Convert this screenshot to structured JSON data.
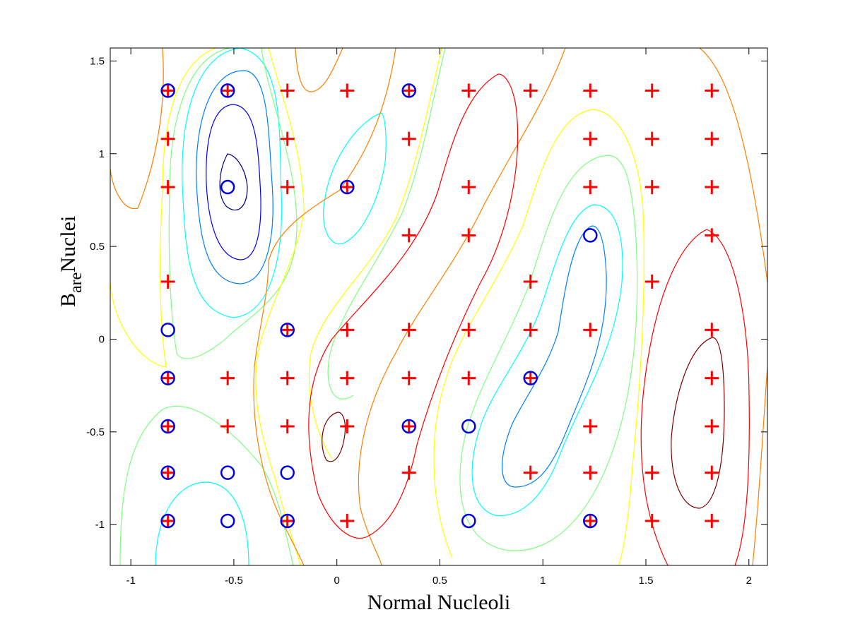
{
  "chart_data": {
    "type": "contour",
    "xlabel": "Normal Nucleoli",
    "ylabel": {
      "main": "B",
      "sub": "are",
      "rest": "Nuclei"
    },
    "xlim": [
      -1.1,
      2.09
    ],
    "ylim": [
      -1.22,
      1.57
    ],
    "x_ticks": [
      -1,
      -0.5,
      0,
      0.5,
      1,
      1.5,
      2
    ],
    "x_tick_labels": [
      "-1",
      "-0.5",
      "0",
      "0.5",
      "1",
      "1.5",
      "2"
    ],
    "y_ticks": [
      -1,
      -0.5,
      0,
      0.5,
      1,
      1.5
    ],
    "y_tick_labels": [
      "-1",
      "-0.5",
      "0",
      "0.5",
      "1",
      "1.5"
    ],
    "grid": false,
    "colors": {
      "plus": "#ff0000",
      "circle": "#0000e6",
      "contours": [
        "#00007f",
        "#0000ff",
        "#007fff",
        "#00ffff",
        "#7fff7f",
        "#ffff00",
        "#ff7f00",
        "#ff0000",
        "#7f0000"
      ]
    },
    "series": [
      {
        "marker": "plus",
        "points": [
          [
            -0.82,
            1.34
          ],
          [
            -0.53,
            1.34
          ],
          [
            -0.24,
            1.34
          ],
          [
            0.05,
            1.34
          ],
          [
            0.35,
            1.34
          ],
          [
            0.64,
            1.34
          ],
          [
            0.94,
            1.34
          ],
          [
            1.23,
            1.34
          ],
          [
            1.53,
            1.34
          ],
          [
            1.82,
            1.34
          ],
          [
            -0.82,
            1.08
          ],
          [
            -0.24,
            1.08
          ],
          [
            0.35,
            1.08
          ],
          [
            1.23,
            1.08
          ],
          [
            1.53,
            1.08
          ],
          [
            1.82,
            1.08
          ],
          [
            -0.82,
            0.82
          ],
          [
            -0.24,
            0.82
          ],
          [
            0.05,
            0.82
          ],
          [
            0.64,
            0.82
          ],
          [
            1.23,
            0.82
          ],
          [
            1.53,
            0.82
          ],
          [
            1.82,
            0.82
          ],
          [
            0.35,
            0.56
          ],
          [
            0.64,
            0.56
          ],
          [
            1.82,
            0.56
          ],
          [
            -0.82,
            0.31
          ],
          [
            0.94,
            0.31
          ],
          [
            1.53,
            0.31
          ],
          [
            -0.24,
            0.05
          ],
          [
            0.05,
            0.05
          ],
          [
            0.35,
            0.05
          ],
          [
            0.64,
            0.05
          ],
          [
            0.94,
            0.05
          ],
          [
            1.23,
            0.05
          ],
          [
            1.82,
            0.05
          ],
          [
            -0.82,
            -0.21
          ],
          [
            -0.53,
            -0.21
          ],
          [
            -0.24,
            -0.21
          ],
          [
            0.05,
            -0.21
          ],
          [
            0.35,
            -0.21
          ],
          [
            0.64,
            -0.21
          ],
          [
            0.94,
            -0.21
          ],
          [
            1.82,
            -0.21
          ],
          [
            -0.82,
            -0.47
          ],
          [
            -0.53,
            -0.47
          ],
          [
            -0.24,
            -0.47
          ],
          [
            0.05,
            -0.47
          ],
          [
            0.35,
            -0.47
          ],
          [
            1.23,
            -0.47
          ],
          [
            1.82,
            -0.47
          ],
          [
            -0.82,
            -0.72
          ],
          [
            0.35,
            -0.72
          ],
          [
            0.94,
            -0.72
          ],
          [
            1.23,
            -0.72
          ],
          [
            1.53,
            -0.72
          ],
          [
            1.82,
            -0.72
          ],
          [
            -0.82,
            -0.98
          ],
          [
            -0.24,
            -0.98
          ],
          [
            0.05,
            -0.98
          ],
          [
            1.23,
            -0.98
          ],
          [
            1.53,
            -0.98
          ],
          [
            1.82,
            -0.98
          ]
        ]
      },
      {
        "marker": "circle",
        "points": [
          [
            -0.82,
            1.34
          ],
          [
            -0.53,
            1.34
          ],
          [
            0.35,
            1.34
          ],
          [
            -0.53,
            0.82
          ],
          [
            0.05,
            0.82
          ],
          [
            1.23,
            0.56
          ],
          [
            -0.82,
            0.05
          ],
          [
            -0.24,
            0.05
          ],
          [
            -0.82,
            -0.21
          ],
          [
            0.94,
            -0.21
          ],
          [
            -0.82,
            -0.47
          ],
          [
            0.35,
            -0.47
          ],
          [
            0.64,
            -0.47
          ],
          [
            -0.82,
            -0.72
          ],
          [
            -0.53,
            -0.72
          ],
          [
            -0.24,
            -0.72
          ],
          [
            -0.82,
            -0.98
          ],
          [
            -0.53,
            -0.98
          ],
          [
            -0.24,
            -0.98
          ],
          [
            0.64,
            -0.98
          ],
          [
            1.23,
            -0.98
          ]
        ]
      }
    ]
  }
}
